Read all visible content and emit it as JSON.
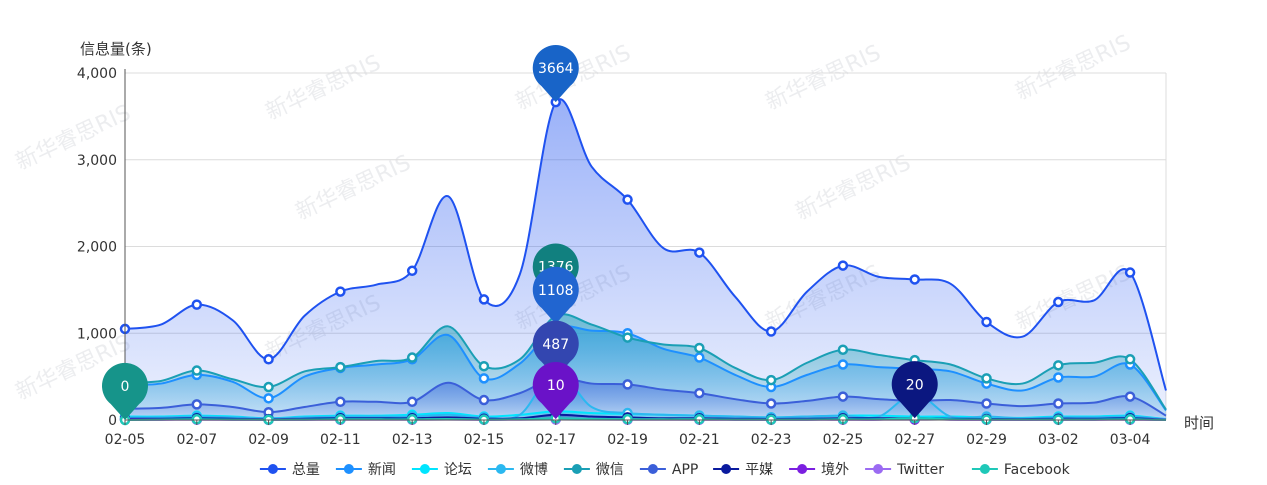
{
  "watermark_text": "新华睿思RIS",
  "chart_data": {
    "type": "area",
    "ylabel": "信息量(条)",
    "xlabel": "时间",
    "ylim": [
      0,
      4000
    ],
    "yticks": [
      0,
      1000,
      2000,
      3000,
      4000
    ],
    "ytick_labels": [
      "0",
      "1,000",
      "2,000",
      "3,000",
      "4,000"
    ],
    "grid": true,
    "legend_position": "bottom",
    "x": [
      "02-05",
      "02-06",
      "02-07",
      "02-08",
      "02-09",
      "02-10",
      "02-11",
      "02-12",
      "02-13",
      "02-14",
      "02-15",
      "02-16",
      "02-17",
      "02-18",
      "02-19",
      "02-20",
      "02-21",
      "02-22",
      "02-23",
      "02-24",
      "02-25",
      "02-26",
      "02-27",
      "02-28",
      "02-29",
      "03-01",
      "03-02",
      "03-03",
      "03-04",
      "03-05"
    ],
    "x_tick_labels": [
      "02-05",
      "02-07",
      "02-09",
      "02-11",
      "02-13",
      "02-15",
      "02-17",
      "02-19",
      "02-21",
      "02-23",
      "02-25",
      "02-27",
      "02-29",
      "03-02",
      "03-04"
    ],
    "series": [
      {
        "name": "总量",
        "color": "#1f52f0",
        "values": [
          1050,
          1100,
          1330,
          1150,
          700,
          1200,
          1480,
          1560,
          1720,
          2580,
          1390,
          1680,
          3664,
          2920,
          2540,
          1980,
          1930,
          1420,
          1020,
          1480,
          1780,
          1650,
          1620,
          1570,
          1130,
          960,
          1360,
          1380,
          1700,
          340
        ]
      },
      {
        "name": "新闻",
        "color": "#1e90ff",
        "values": [
          400,
          420,
          520,
          440,
          250,
          500,
          600,
          640,
          700,
          980,
          480,
          650,
          1060,
          1030,
          1000,
          820,
          720,
          520,
          380,
          520,
          640,
          610,
          590,
          560,
          420,
          340,
          490,
          500,
          640,
          110
        ]
      },
      {
        "name": "论坛",
        "color": "#00e5ff",
        "values": [
          40,
          40,
          50,
          40,
          20,
          40,
          50,
          50,
          60,
          80,
          40,
          60,
          100,
          80,
          70,
          60,
          50,
          40,
          30,
          40,
          50,
          50,
          40,
          40,
          30,
          25,
          40,
          40,
          50,
          10
        ]
      },
      {
        "name": "微博",
        "color": "#2bb8f0",
        "values": [
          30,
          30,
          40,
          30,
          20,
          30,
          40,
          40,
          40,
          60,
          30,
          60,
          560,
          150,
          80,
          60,
          50,
          40,
          30,
          40,
          50,
          40,
          300,
          40,
          40,
          20,
          30,
          30,
          40,
          10
        ]
      },
      {
        "name": "微信",
        "color": "#1a9fb5",
        "values": [
          430,
          450,
          570,
          470,
          380,
          560,
          610,
          680,
          720,
          1080,
          620,
          700,
          1200,
          1100,
          950,
          870,
          830,
          600,
          460,
          660,
          810,
          750,
          690,
          640,
          480,
          420,
          630,
          660,
          700,
          120
        ]
      },
      {
        "name": "APP",
        "color": "#3b5fd9",
        "values": [
          130,
          140,
          180,
          150,
          90,
          150,
          210,
          210,
          210,
          430,
          230,
          310,
          487,
          420,
          410,
          350,
          310,
          240,
          190,
          220,
          270,
          240,
          220,
          230,
          190,
          160,
          190,
          200,
          270,
          50
        ]
      },
      {
        "name": "平媒",
        "color": "#0a1a9e",
        "values": [
          15,
          15,
          20,
          15,
          10,
          15,
          20,
          20,
          20,
          30,
          15,
          20,
          60,
          40,
          30,
          20,
          20,
          15,
          12,
          15,
          20,
          20,
          20,
          15,
          12,
          10,
          15,
          15,
          20,
          5
        ]
      },
      {
        "name": "境外",
        "color": "#7b1fe0",
        "values": [
          5,
          5,
          6,
          5,
          3,
          5,
          6,
          6,
          6,
          8,
          5,
          6,
          10,
          8,
          7,
          6,
          5,
          5,
          4,
          5,
          5,
          5,
          5,
          5,
          4,
          3,
          5,
          5,
          5,
          1
        ]
      },
      {
        "name": "Twitter",
        "color": "#9b6bf2",
        "values": [
          2,
          2,
          3,
          2,
          1,
          2,
          3,
          3,
          3,
          4,
          2,
          3,
          6,
          4,
          3,
          3,
          3,
          2,
          2,
          2,
          3,
          3,
          20,
          3,
          2,
          2,
          2,
          2,
          3,
          1
        ]
      },
      {
        "name": "Facebook",
        "color": "#1fc8b8",
        "values": [
          0,
          5,
          8,
          5,
          3,
          5,
          8,
          8,
          8,
          12,
          5,
          8,
          20,
          12,
          10,
          8,
          8,
          5,
          4,
          5,
          8,
          8,
          20,
          8,
          5,
          4,
          5,
          5,
          8,
          1
        ]
      }
    ],
    "pins": [
      {
        "label": "3664",
        "x": "02-17",
        "y": 3664,
        "color": "#1864c8"
      },
      {
        "label": "1376",
        "x": "02-17",
        "y": 1376,
        "color": "#11807f"
      },
      {
        "label": "1108",
        "x": "02-17",
        "y": 1108,
        "color": "#2165d0"
      },
      {
        "label": "487",
        "x": "02-17",
        "y": 487,
        "color": "#3346b0"
      },
      {
        "label": "10",
        "x": "02-17",
        "y": 10,
        "color": "#6a12c8"
      },
      {
        "label": "0",
        "x": "02-05",
        "y": 0,
        "color": "#16948a"
      },
      {
        "label": "20",
        "x": "02-27",
        "y": 20,
        "color": "#0b1780"
      }
    ]
  }
}
